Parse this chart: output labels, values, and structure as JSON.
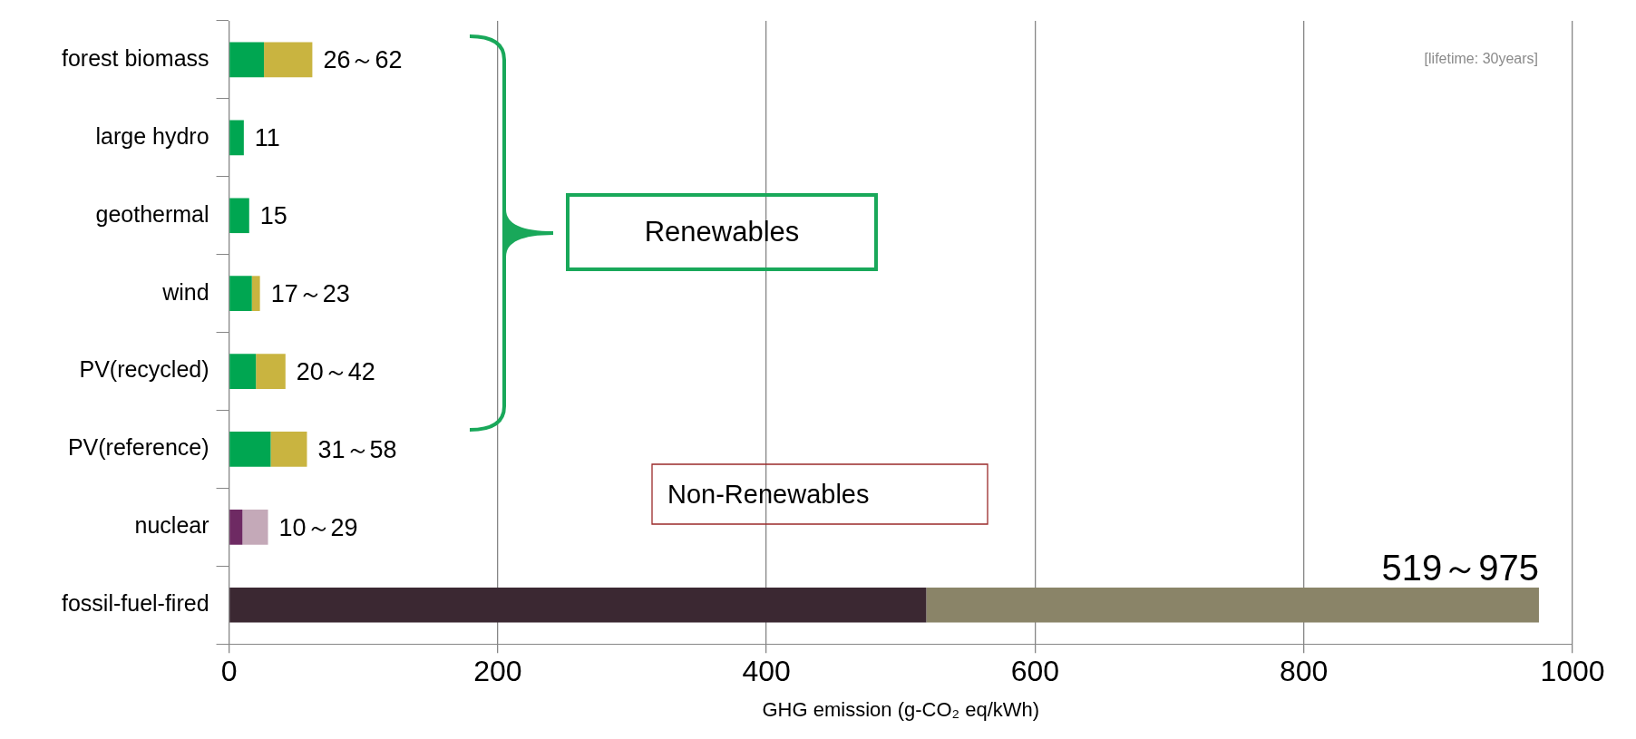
{
  "chart_data": {
    "type": "bar",
    "orientation": "horizontal",
    "stacked": true,
    "categories": [
      "forest biomass",
      "large hydro",
      "geothermal",
      "wind",
      "PV(recycled)",
      "PV(reference)",
      "nuclear",
      "fossil-fuel-fired"
    ],
    "series": [
      {
        "colors": [
          "#00a651",
          "#00a651",
          "#00a651",
          "#00a651",
          "#00a651",
          "#00a651",
          "#6e2a63",
          "#3b2832"
        ],
        "values": [
          26,
          11,
          15,
          17,
          20,
          31,
          10,
          519
        ]
      },
      {
        "colors": [
          "#c9b440",
          "#c9b440",
          "#c9b440",
          "#c9b440",
          "#c9b440",
          "#c9b440",
          "#c4a9b8",
          "#8a8468"
        ],
        "values": [
          36,
          null,
          null,
          6,
          22,
          27,
          19,
          456
        ]
      }
    ],
    "value_labels": [
      "26～62",
      "11",
      "15",
      "17～23",
      "20～42",
      "31～58",
      "10～29",
      "519～975"
    ],
    "xlabel": "GHG emission (g-CO₂ eq/kWh)",
    "xlim": [
      0,
      1000
    ],
    "xticks": [
      0,
      200,
      400,
      600,
      800,
      1000
    ],
    "grid": "x",
    "legend": false,
    "annotations": [
      "[lifetime: 30years]",
      "Renewables",
      "Non-Renewables"
    ]
  }
}
